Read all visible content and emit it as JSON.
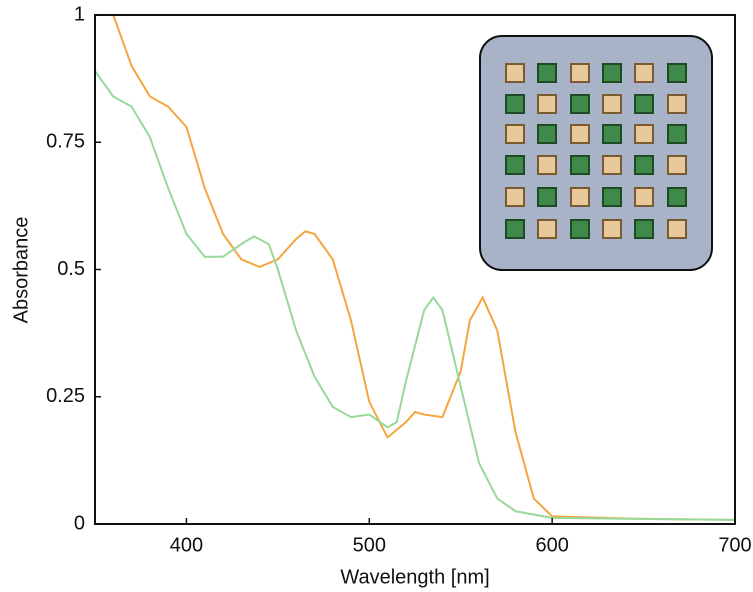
{
  "chart_data": {
    "type": "line",
    "xlabel": "Wavelength [nm]",
    "ylabel": "Absorbance",
    "xlim": [
      350,
      700
    ],
    "ylim": [
      0,
      1
    ],
    "xticks": [
      400,
      500,
      600,
      700
    ],
    "yticks": [
      0,
      0.25,
      0.5,
      0.75,
      1
    ],
    "series": [
      {
        "color": "#f5a540",
        "x": [
          360,
          370,
          380,
          390,
          400,
          410,
          420,
          430,
          440,
          450,
          460,
          465,
          470,
          480,
          490,
          500,
          510,
          520,
          525,
          530,
          540,
          550,
          555,
          562,
          570,
          580,
          590,
          600,
          650,
          700
        ],
        "values": [
          1.0,
          0.9,
          0.84,
          0.82,
          0.78,
          0.66,
          0.57,
          0.52,
          0.505,
          0.52,
          0.56,
          0.575,
          0.57,
          0.52,
          0.4,
          0.24,
          0.17,
          0.2,
          0.22,
          0.215,
          0.21,
          0.3,
          0.4,
          0.445,
          0.38,
          0.18,
          0.05,
          0.015,
          0.01,
          0.008
        ]
      },
      {
        "color": "#98d898",
        "x": [
          350,
          360,
          370,
          380,
          390,
          400,
          410,
          420,
          430,
          437,
          445,
          450,
          460,
          470,
          480,
          490,
          500,
          510,
          515,
          520,
          530,
          535,
          540,
          550,
          560,
          570,
          580,
          600,
          650,
          700
        ],
        "values": [
          0.89,
          0.84,
          0.82,
          0.76,
          0.66,
          0.57,
          0.525,
          0.525,
          0.55,
          0.565,
          0.55,
          0.5,
          0.38,
          0.29,
          0.23,
          0.21,
          0.215,
          0.19,
          0.2,
          0.28,
          0.42,
          0.445,
          0.42,
          0.27,
          0.12,
          0.05,
          0.025,
          0.012,
          0.01,
          0.008
        ]
      }
    ]
  }
}
